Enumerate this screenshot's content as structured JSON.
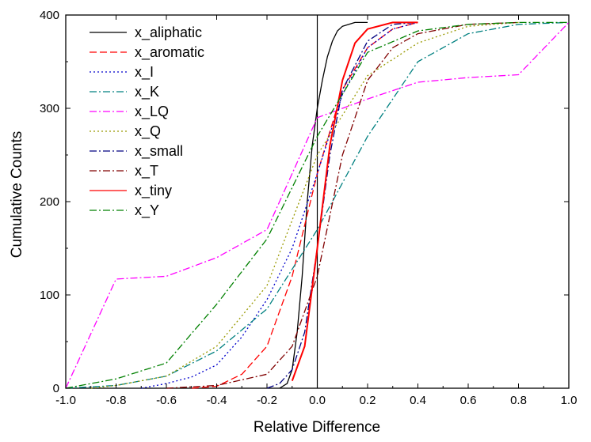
{
  "chart_data": {
    "type": "line",
    "title": "",
    "xlabel": "Relative Difference",
    "ylabel": "Cumulative Counts",
    "xlim": [
      -1.0,
      1.0
    ],
    "ylim": [
      0,
      400
    ],
    "xticks": [
      "-1.0",
      "-0.8",
      "-0.6",
      "-0.4",
      "-0.2",
      "0.0",
      "0.2",
      "0.4",
      "0.6",
      "0.8",
      "1.0"
    ],
    "yticks": [
      "0",
      "100",
      "200",
      "300",
      "400"
    ],
    "grid": false,
    "legend_position": "top-left",
    "vline_at": 0.0,
    "series": [
      {
        "name": "x_aliphatic",
        "color": "#000000",
        "dash": "solid",
        "points": [
          [
            -0.15,
            0
          ],
          [
            -0.12,
            5
          ],
          [
            -0.1,
            20
          ],
          [
            -0.08,
            60
          ],
          [
            -0.06,
            120
          ],
          [
            -0.04,
            200
          ],
          [
            -0.02,
            260
          ],
          [
            0,
            300
          ],
          [
            0.02,
            330
          ],
          [
            0.04,
            355
          ],
          [
            0.06,
            372
          ],
          [
            0.08,
            383
          ],
          [
            0.1,
            388
          ],
          [
            0.15,
            392
          ],
          [
            0.2,
            392
          ]
        ]
      },
      {
        "name": "x_aromatic",
        "color": "#ff0000",
        "dash": "dash",
        "points": [
          [
            -0.5,
            0
          ],
          [
            -0.4,
            2
          ],
          [
            -0.3,
            15
          ],
          [
            -0.2,
            45
          ],
          [
            -0.1,
            120
          ],
          [
            0,
            230
          ],
          [
            0.1,
            320
          ],
          [
            0.2,
            365
          ],
          [
            0.3,
            385
          ],
          [
            0.4,
            392
          ]
        ]
      },
      {
        "name": "x_I",
        "color": "#0000cc",
        "dash": "dot",
        "points": [
          [
            -0.7,
            0
          ],
          [
            -0.6,
            5
          ],
          [
            -0.5,
            12
          ],
          [
            -0.4,
            25
          ],
          [
            -0.3,
            55
          ],
          [
            -0.2,
            95
          ],
          [
            -0.1,
            150
          ],
          [
            0,
            230
          ],
          [
            0.1,
            315
          ],
          [
            0.2,
            365
          ],
          [
            0.3,
            385
          ],
          [
            0.4,
            392
          ]
        ]
      },
      {
        "name": "x_K",
        "color": "#008080",
        "dash": "dashdot",
        "points": [
          [
            -1.0,
            0
          ],
          [
            -0.8,
            3
          ],
          [
            -0.6,
            13
          ],
          [
            -0.4,
            40
          ],
          [
            -0.2,
            85
          ],
          [
            0,
            170
          ],
          [
            0.2,
            270
          ],
          [
            0.4,
            350
          ],
          [
            0.6,
            380
          ],
          [
            0.8,
            390
          ],
          [
            1.0,
            392
          ]
        ]
      },
      {
        "name": "x_LQ",
        "color": "#ff00ff",
        "dash": "dashdot",
        "points": [
          [
            -1.0,
            0
          ],
          [
            -0.8,
            117
          ],
          [
            -0.6,
            120
          ],
          [
            -0.4,
            140
          ],
          [
            -0.2,
            170
          ],
          [
            0,
            290
          ],
          [
            0.2,
            310
          ],
          [
            0.4,
            328
          ],
          [
            0.6,
            333
          ],
          [
            0.8,
            336
          ],
          [
            1.0,
            392
          ]
        ]
      },
      {
        "name": "x_Q",
        "color": "#999900",
        "dash": "dot",
        "points": [
          [
            -0.9,
            0
          ],
          [
            -0.8,
            3
          ],
          [
            -0.6,
            13
          ],
          [
            -0.4,
            45
          ],
          [
            -0.2,
            110
          ],
          [
            0,
            250
          ],
          [
            0.2,
            335
          ],
          [
            0.4,
            370
          ],
          [
            0.6,
            388
          ],
          [
            0.8,
            392
          ]
        ]
      },
      {
        "name": "x_small",
        "color": "#000080",
        "dash": "dashdot",
        "points": [
          [
            -0.2,
            0
          ],
          [
            -0.15,
            5
          ],
          [
            -0.1,
            20
          ],
          [
            -0.05,
            60
          ],
          [
            0,
            150
          ],
          [
            0.05,
            250
          ],
          [
            0.1,
            320
          ],
          [
            0.2,
            372
          ],
          [
            0.3,
            390
          ],
          [
            0.4,
            392
          ]
        ]
      },
      {
        "name": "x_T",
        "color": "#800000",
        "dash": "dashdot",
        "points": [
          [
            -0.6,
            0
          ],
          [
            -0.4,
            3
          ],
          [
            -0.2,
            15
          ],
          [
            -0.1,
            45
          ],
          [
            0,
            120
          ],
          [
            0.1,
            250
          ],
          [
            0.2,
            330
          ],
          [
            0.3,
            365
          ],
          [
            0.4,
            380
          ],
          [
            0.6,
            390
          ],
          [
            0.8,
            392
          ]
        ]
      },
      {
        "name": "x_tiny",
        "color": "#ff0000",
        "dash": "solid",
        "points": [
          [
            -0.1,
            8
          ],
          [
            -0.05,
            45
          ],
          [
            0,
            150
          ],
          [
            0.05,
            260
          ],
          [
            0.1,
            330
          ],
          [
            0.15,
            370
          ],
          [
            0.2,
            385
          ],
          [
            0.3,
            392
          ],
          [
            0.4,
            392
          ]
        ]
      },
      {
        "name": "x_Y",
        "color": "#008000",
        "dash": "dashdot",
        "points": [
          [
            -1.0,
            0
          ],
          [
            -0.8,
            10
          ],
          [
            -0.6,
            27
          ],
          [
            -0.4,
            90
          ],
          [
            -0.2,
            160
          ],
          [
            0,
            270
          ],
          [
            0.2,
            360
          ],
          [
            0.4,
            383
          ],
          [
            0.6,
            390
          ],
          [
            0.8,
            392
          ],
          [
            1.0,
            392
          ]
        ]
      }
    ]
  }
}
